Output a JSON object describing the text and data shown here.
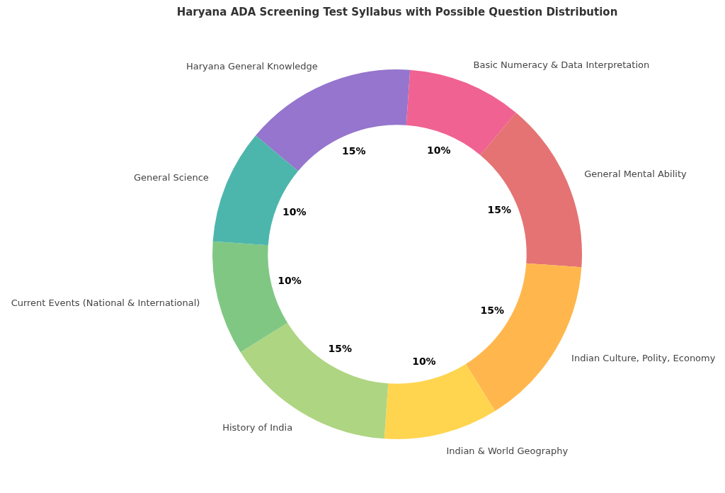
{
  "chart_data": {
    "type": "donut",
    "title": "Haryana ADA Screening Test Syllabus with Possible Question Distribution",
    "categories": [
      "Haryana General Knowledge",
      "Basic Numeracy & Data Interpretation",
      "General Mental Ability",
      "Indian Culture, Polity, Economy",
      "Indian & World Geography",
      "History of India",
      "Current Events (National & International)",
      "General Science"
    ],
    "values": [
      15,
      10,
      15,
      15,
      10,
      15,
      10,
      10
    ],
    "colors": [
      "#9575cd",
      "#f06292",
      "#e57373",
      "#ffb74d",
      "#ffd54f",
      "#aed581",
      "#81c784",
      "#4db6ac"
    ],
    "value_labels": [
      "15%",
      "10%",
      "15%",
      "15%",
      "10%",
      "15%",
      "10%",
      "10%"
    ]
  }
}
